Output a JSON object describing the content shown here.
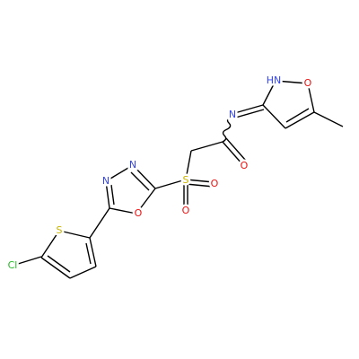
{
  "atoms": [
    {
      "label": "Cl"
    },
    {
      "label": "S"
    },
    {
      "label": "N"
    },
    {
      "label": "N"
    },
    {
      "label": "O"
    },
    {
      "label": "S"
    },
    {
      "label": "O"
    },
    {
      "label": "O"
    },
    {
      "label": "O"
    },
    {
      "label": "N"
    },
    {
      "label": "HN"
    },
    {
      "label": "O"
    }
  ]
}
